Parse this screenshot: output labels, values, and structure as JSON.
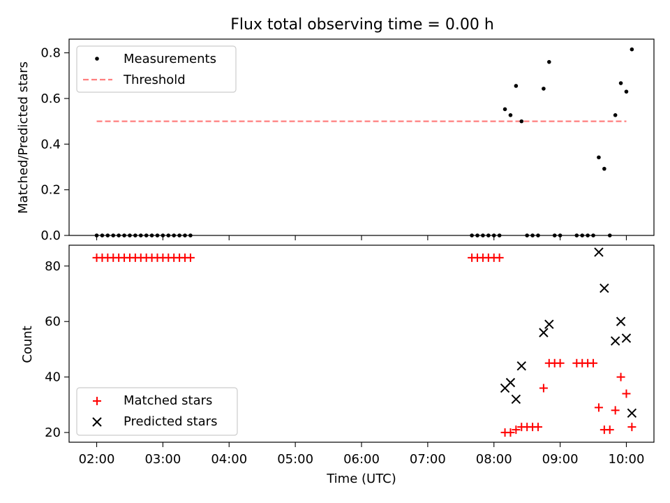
{
  "chart_data": [
    {
      "type": "scatter",
      "title": "Flux total observing time = 0.00 h",
      "xlabel": "",
      "ylabel": "Matched/Predicted stars",
      "xlim": [
        "01:35",
        "10:25"
      ],
      "ylim": [
        0,
        0.86
      ],
      "yticks": [
        "0.0",
        "0.2",
        "0.4",
        "0.6",
        "0.8"
      ],
      "ytick_values": [
        0,
        0.2,
        0.4,
        0.6,
        0.8
      ],
      "legend": "top-left",
      "series": [
        {
          "name": "Measurements",
          "marker": "dot",
          "color": "#000000",
          "points": [
            [
              "02:00",
              0
            ],
            [
              "02:05",
              0
            ],
            [
              "02:10",
              0
            ],
            [
              "02:15",
              0
            ],
            [
              "02:20",
              0
            ],
            [
              "02:25",
              0
            ],
            [
              "02:30",
              0
            ],
            [
              "02:35",
              0
            ],
            [
              "02:40",
              0
            ],
            [
              "02:45",
              0
            ],
            [
              "02:50",
              0
            ],
            [
              "02:55",
              0
            ],
            [
              "03:00",
              0
            ],
            [
              "03:05",
              0
            ],
            [
              "03:10",
              0
            ],
            [
              "03:15",
              0
            ],
            [
              "03:20",
              0
            ],
            [
              "03:25",
              0
            ],
            [
              "07:40",
              0
            ],
            [
              "07:45",
              0
            ],
            [
              "07:50",
              0
            ],
            [
              "07:55",
              0
            ],
            [
              "08:00",
              0
            ],
            [
              "08:05",
              0
            ],
            [
              "08:10",
              0.553
            ],
            [
              "08:15",
              0.527
            ],
            [
              "08:20",
              0.655
            ],
            [
              "08:25",
              0.5
            ],
            [
              "08:30",
              0
            ],
            [
              "08:35",
              0
            ],
            [
              "08:40",
              0
            ],
            [
              "08:45",
              0.643
            ],
            [
              "08:50",
              0.76
            ],
            [
              "08:55",
              0
            ],
            [
              "09:00",
              0
            ],
            [
              "09:15",
              0
            ],
            [
              "09:20",
              0
            ],
            [
              "09:25",
              0
            ],
            [
              "09:30",
              0
            ],
            [
              "09:35",
              0.342
            ],
            [
              "09:40",
              0.292
            ],
            [
              "09:45",
              0
            ],
            [
              "09:50",
              0.527
            ],
            [
              "09:55",
              0.667
            ],
            [
              "10:00",
              0.63
            ],
            [
              "10:05",
              0.815
            ]
          ]
        },
        {
          "name": "Threshold",
          "marker": "dashed-line",
          "color": "#ff7f7f",
          "points": [
            [
              "02:00",
              0.5
            ],
            [
              "10:00",
              0.5
            ]
          ]
        }
      ]
    },
    {
      "type": "scatter",
      "title": "",
      "xlabel": "Time (UTC)",
      "ylabel": "Count",
      "xlim": [
        "01:35",
        "10:25"
      ],
      "ylim": [
        16.5,
        87.5
      ],
      "xticks": [
        "02:00",
        "03:00",
        "04:00",
        "05:00",
        "06:00",
        "07:00",
        "08:00",
        "09:00",
        "10:00"
      ],
      "yticks": [
        "20",
        "40",
        "60",
        "80"
      ],
      "ytick_values": [
        20,
        40,
        60,
        80
      ],
      "legend": "bottom-left",
      "series": [
        {
          "name": "Matched stars",
          "marker": "plus",
          "color": "#ff0000",
          "points": [
            [
              "02:00",
              83
            ],
            [
              "02:05",
              83
            ],
            [
              "02:10",
              83
            ],
            [
              "02:15",
              83
            ],
            [
              "02:20",
              83
            ],
            [
              "02:25",
              83
            ],
            [
              "02:30",
              83
            ],
            [
              "02:35",
              83
            ],
            [
              "02:40",
              83
            ],
            [
              "02:45",
              83
            ],
            [
              "02:50",
              83
            ],
            [
              "02:55",
              83
            ],
            [
              "03:00",
              83
            ],
            [
              "03:05",
              83
            ],
            [
              "03:10",
              83
            ],
            [
              "03:15",
              83
            ],
            [
              "03:20",
              83
            ],
            [
              "03:25",
              83
            ],
            [
              "07:40",
              83
            ],
            [
              "07:45",
              83
            ],
            [
              "07:50",
              83
            ],
            [
              "07:55",
              83
            ],
            [
              "08:00",
              83
            ],
            [
              "08:05",
              83
            ],
            [
              "08:10",
              20
            ],
            [
              "08:15",
              20
            ],
            [
              "08:20",
              21
            ],
            [
              "08:25",
              22
            ],
            [
              "08:30",
              22
            ],
            [
              "08:35",
              22
            ],
            [
              "08:40",
              22
            ],
            [
              "08:45",
              36
            ],
            [
              "08:50",
              45
            ],
            [
              "08:55",
              45
            ],
            [
              "09:00",
              45
            ],
            [
              "09:15",
              45
            ],
            [
              "09:20",
              45
            ],
            [
              "09:25",
              45
            ],
            [
              "09:30",
              45
            ],
            [
              "09:35",
              29
            ],
            [
              "09:40",
              21
            ],
            [
              "09:45",
              21
            ],
            [
              "09:50",
              28
            ],
            [
              "09:55",
              40
            ],
            [
              "10:00",
              34
            ],
            [
              "10:05",
              22
            ]
          ]
        },
        {
          "name": "Predicted stars",
          "marker": "x",
          "color": "#000000",
          "points": [
            [
              "08:10",
              36
            ],
            [
              "08:15",
              38
            ],
            [
              "08:20",
              32
            ],
            [
              "08:25",
              44
            ],
            [
              "08:45",
              56
            ],
            [
              "08:50",
              59
            ],
            [
              "09:35",
              85
            ],
            [
              "09:40",
              72
            ],
            [
              "09:50",
              53
            ],
            [
              "09:55",
              60
            ],
            [
              "10:00",
              54
            ],
            [
              "10:05",
              27
            ]
          ]
        }
      ]
    }
  ]
}
